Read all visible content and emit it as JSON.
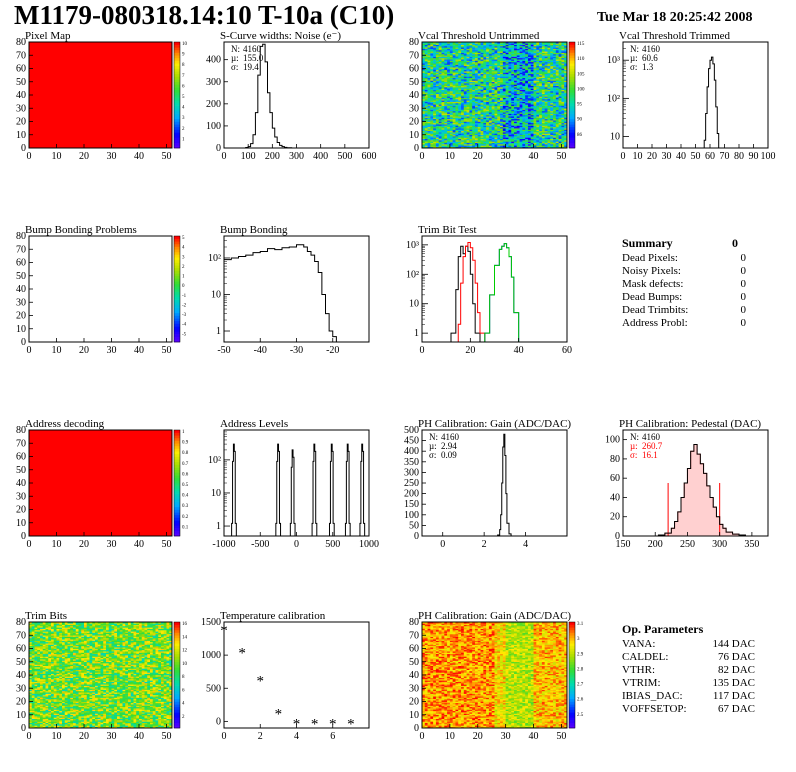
{
  "header": {
    "title": "M1179-080318.14:10 T-10a (C10)",
    "date": "Tue Mar 18 20:25:42 2008"
  },
  "chart_data": [
    {
      "id": "pixel-map",
      "type": "heatmap",
      "title": "Pixel Map",
      "xlim": [
        0,
        52
      ],
      "ylim": [
        0,
        80
      ],
      "xticks": [
        0,
        10,
        20,
        30,
        40,
        50
      ],
      "yticks": [
        0,
        10,
        20,
        30,
        40,
        50,
        60,
        70,
        80
      ],
      "fill": "uniform",
      "zlim": [
        0,
        10
      ],
      "palette_labels": [
        "1",
        "2",
        "3",
        "4",
        "5",
        "6",
        "7",
        "8",
        "9",
        "10"
      ]
    },
    {
      "id": "scurve-noise",
      "type": "line",
      "title": "S-Curve widths: Noise (e⁻)",
      "xlim": [
        0,
        600
      ],
      "ylim": [
        0,
        480
      ],
      "xticks": [
        0,
        100,
        200,
        300,
        400,
        500,
        600
      ],
      "yticks": [
        0,
        100,
        200,
        300,
        400
      ],
      "x": [
        70,
        80,
        90,
        100,
        110,
        120,
        130,
        140,
        150,
        160,
        170,
        180,
        190,
        200,
        210,
        220,
        230,
        240,
        250,
        260,
        270,
        280,
        290
      ],
      "y": [
        0,
        0,
        2,
        6,
        20,
        60,
        160,
        330,
        460,
        470,
        390,
        250,
        160,
        90,
        50,
        25,
        12,
        6,
        3,
        1,
        1,
        0,
        0
      ],
      "stats": [
        {
          "label": "N:",
          "value": "4160"
        },
        {
          "label": "µ:",
          "value": "155.0"
        },
        {
          "label": "σ:",
          "value": "19.4"
        }
      ]
    },
    {
      "id": "vcal-untrimmed",
      "type": "heatmap",
      "title": "Vcal Threshold Untrimmed",
      "xlim": [
        0,
        52
      ],
      "ylim": [
        0,
        80
      ],
      "xticks": [
        0,
        10,
        20,
        30,
        40,
        50
      ],
      "yticks": [
        0,
        10,
        20,
        30,
        40,
        50,
        60,
        70,
        80
      ],
      "fill": "noise-untrimmed",
      "zlim": [
        86,
        117
      ],
      "palette_labels": [
        "86",
        "90",
        "95",
        "100",
        "105",
        "110",
        "115"
      ]
    },
    {
      "id": "vcal-trimmed",
      "type": "line",
      "title": "Vcal Threshold Trimmed",
      "xlim": [
        0,
        100
      ],
      "ylim": [
        5,
        3000
      ],
      "log_y": true,
      "xticks": [
        0,
        10,
        20,
        30,
        40,
        50,
        60,
        70,
        80,
        90,
        100
      ],
      "ytick_labels": [
        "10",
        "10²",
        "10³"
      ],
      "x": [
        55,
        56,
        57,
        58,
        59,
        60,
        61,
        62,
        63,
        64,
        65,
        66,
        67
      ],
      "y": [
        0,
        8,
        40,
        200,
        600,
        1000,
        1200,
        800,
        300,
        60,
        12,
        2,
        0
      ],
      "stats": [
        {
          "label": "N:",
          "value": "4160"
        },
        {
          "label": "µ:",
          "value": "60.6"
        },
        {
          "label": "σ:",
          "value": "1.3"
        }
      ]
    },
    {
      "id": "bump-problems",
      "type": "heatmap",
      "title": "Bump Bonding Problems",
      "xlim": [
        0,
        52
      ],
      "ylim": [
        0,
        80
      ],
      "xticks": [
        0,
        10,
        20,
        30,
        40,
        50
      ],
      "yticks": [
        0,
        10,
        20,
        30,
        40,
        50,
        60,
        70,
        80
      ],
      "fill": "empty",
      "zlim": [
        -5,
        5
      ],
      "palette_labels": [
        "-5",
        "-4",
        "-3",
        "-2",
        "-1",
        "0",
        "1",
        "2",
        "3",
        "4",
        "5"
      ]
    },
    {
      "id": "bump-bonding",
      "type": "line",
      "title": "Bump Bonding",
      "xlim": [
        -50,
        -10
      ],
      "ylim": [
        0.5,
        400
      ],
      "log_y": true,
      "xticks": [
        -50,
        -40,
        -30,
        -20
      ],
      "ytick_labels": [
        "1",
        "10",
        "10²"
      ],
      "x": [
        -50,
        -48,
        -46,
        -44,
        -42,
        -40,
        -38,
        -36,
        -34,
        -32,
        -30,
        -28,
        -27,
        -26,
        -25,
        -24,
        -23,
        -22,
        -21,
        -20,
        -19
      ],
      "y": [
        90,
        100,
        110,
        120,
        140,
        150,
        180,
        170,
        190,
        200,
        230,
        200,
        150,
        120,
        80,
        40,
        10,
        3,
        1,
        0.7,
        0.5
      ]
    },
    {
      "id": "trim-bit-test",
      "type": "line",
      "title": "Trim Bit Test",
      "xlim": [
        0,
        60
      ],
      "ylim": [
        0.5,
        2000
      ],
      "log_y": true,
      "xticks": [
        0,
        20,
        40,
        60
      ],
      "ytick_labels": [
        "1",
        "10",
        "10²",
        "10³"
      ],
      "series": [
        {
          "color": "#000000",
          "x": [
            10,
            12,
            14,
            15,
            16,
            17,
            18,
            19,
            20,
            21,
            22,
            24
          ],
          "y": [
            0.5,
            1,
            30,
            400,
            900,
            500,
            900,
            600,
            100,
            10,
            1,
            0.5
          ]
        },
        {
          "color": "#ff0000",
          "x": [
            13,
            15,
            16,
            17,
            18,
            19,
            20,
            21,
            22,
            23,
            24,
            26
          ],
          "y": [
            0.5,
            2,
            50,
            400,
            900,
            1200,
            800,
            300,
            50,
            5,
            1,
            0.5
          ]
        },
        {
          "color": "#0000ff",
          "x": [
            24,
            26,
            28,
            30,
            32,
            33,
            34,
            35,
            36,
            37,
            38,
            40
          ],
          "y": [
            0.5,
            1,
            20,
            200,
            700,
            900,
            1100,
            800,
            400,
            80,
            5,
            0.5
          ]
        },
        {
          "color": "#00cc00",
          "x": [
            0,
            10,
            20,
            24,
            26,
            28,
            30,
            32,
            33,
            34,
            35,
            36,
            37,
            38,
            40,
            50,
            60
          ],
          "y": [
            0.5,
            0.5,
            0.5,
            0.5,
            1,
            20,
            200,
            700,
            900,
            1100,
            800,
            400,
            80,
            5,
            0.5,
            0.5,
            0.5
          ]
        }
      ]
    },
    {
      "id": "address-decoding",
      "type": "heatmap",
      "title": "Address decoding",
      "xlim": [
        0,
        52
      ],
      "ylim": [
        0,
        80
      ],
      "xticks": [
        0,
        10,
        20,
        30,
        40,
        50
      ],
      "yticks": [
        0,
        10,
        20,
        30,
        40,
        50,
        60,
        70,
        80
      ],
      "fill": "uniform",
      "zlim": [
        0,
        1
      ],
      "palette_labels": [
        "0.1",
        "0.2",
        "0.3",
        "0.4",
        "0.5",
        "0.6",
        "0.7",
        "0.8",
        "0.9",
        "1"
      ]
    },
    {
      "id": "address-levels",
      "type": "line",
      "title": "Address Levels",
      "xlim": [
        -1000,
        1000
      ],
      "ylim": [
        0.5,
        800
      ],
      "log_y": true,
      "xticks": [
        -1000,
        -500,
        0,
        500,
        1000
      ],
      "ytick_labels": [
        "1",
        "10",
        "10²"
      ],
      "peaks": [
        -870,
        -260,
        -60,
        240,
        480,
        700,
        900
      ],
      "peak_heights": [
        300,
        300,
        200,
        300,
        300,
        300,
        300
      ]
    },
    {
      "id": "ph-gain",
      "type": "line",
      "title": "PH Calibration: Gain (ADC/DAC)",
      "xlim": [
        -1,
        6
      ],
      "ylim": [
        0,
        500
      ],
      "xticks": [
        0,
        2,
        4
      ],
      "yticks": [
        0,
        50,
        100,
        150,
        200,
        250,
        300,
        350,
        400,
        450,
        500
      ],
      "x": [
        2.55,
        2.65,
        2.75,
        2.8,
        2.85,
        2.9,
        2.95,
        3.0,
        3.05,
        3.1,
        3.2,
        3.3
      ],
      "y": [
        0,
        5,
        30,
        100,
        250,
        420,
        480,
        380,
        200,
        60,
        10,
        0
      ],
      "stats": [
        {
          "label": "N:",
          "value": "4160"
        },
        {
          "label": "µ:",
          "value": "2.94"
        },
        {
          "label": "σ:",
          "value": "0.09"
        }
      ]
    },
    {
      "id": "ph-pedestal",
      "type": "line",
      "title": "PH Calibration: Pedestal (DAC)",
      "xlim": [
        150,
        375
      ],
      "ylim": [
        0,
        110
      ],
      "xticks": [
        150,
        200,
        250,
        300,
        350
      ],
      "yticks": [
        0,
        20,
        40,
        60,
        80,
        100
      ],
      "x": [
        195,
        205,
        215,
        225,
        230,
        235,
        240,
        245,
        250,
        255,
        260,
        265,
        270,
        275,
        280,
        285,
        290,
        295,
        300,
        305,
        310,
        320,
        330,
        340
      ],
      "y": [
        0,
        1,
        3,
        8,
        15,
        25,
        40,
        55,
        70,
        88,
        95,
        85,
        75,
        65,
        52,
        40,
        30,
        20,
        12,
        8,
        4,
        2,
        1,
        0
      ],
      "fit_range": [
        220,
        300
      ],
      "stats": [
        {
          "label": "N:",
          "value": "4160",
          "color": "#000"
        },
        {
          "label": "µ:",
          "value": "260.7",
          "color": "#ff0000"
        },
        {
          "label": "σ:",
          "value": "16.1",
          "color": "#ff0000"
        }
      ]
    },
    {
      "id": "trim-bits",
      "type": "heatmap",
      "title": "Trim Bits",
      "xlim": [
        0,
        52
      ],
      "ylim": [
        0,
        80
      ],
      "xticks": [
        0,
        10,
        20,
        30,
        40,
        50
      ],
      "yticks": [
        0,
        10,
        20,
        30,
        40,
        50,
        60,
        70,
        80
      ],
      "fill": "noise-trim",
      "zlim": [
        0,
        16
      ],
      "palette_labels": [
        "2",
        "4",
        "6",
        "8",
        "10",
        "12",
        "14",
        "16"
      ]
    },
    {
      "id": "temperature-calibration",
      "type": "scatter",
      "title": "Temperature calibration",
      "xlim": [
        0,
        8
      ],
      "ylim": [
        -100,
        1500
      ],
      "xticks": [
        0,
        2,
        4,
        6
      ],
      "yticks": [
        0,
        500,
        1000,
        1500
      ],
      "x": [
        0,
        1,
        2,
        3,
        4,
        5,
        6,
        7
      ],
      "y": [
        1380,
        1040,
        620,
        120,
        -30,
        -30,
        -30,
        -30
      ]
    },
    {
      "id": "ph-gain-map",
      "type": "heatmap",
      "title": "PH Calibration: Gain (ADC/DAC)",
      "xlim": [
        0,
        52
      ],
      "ylim": [
        0,
        80
      ],
      "xticks": [
        0,
        10,
        20,
        30,
        40,
        50
      ],
      "yticks": [
        0,
        10,
        20,
        30,
        40,
        50,
        60,
        70,
        80
      ],
      "fill": "noise-gain",
      "zlim": [
        2.4,
        3.2
      ],
      "palette_labels": [
        "2.5",
        "2.6",
        "2.7",
        "2.8",
        "2.9",
        "3",
        "3.1"
      ]
    }
  ],
  "summary": {
    "title": "Summary",
    "total": "0",
    "rows": [
      {
        "label": "Dead Pixels:",
        "value": "0"
      },
      {
        "label": "Noisy Pixels:",
        "value": "0"
      },
      {
        "label": "Mask defects:",
        "value": "0"
      },
      {
        "label": "Dead Bumps:",
        "value": "0"
      },
      {
        "label": "Dead Trimbits:",
        "value": "0"
      },
      {
        "label": "Address Probl:",
        "value": "0"
      }
    ]
  },
  "op_parameters": {
    "title": "Op. Parameters",
    "rows": [
      {
        "label": "VANA:",
        "value": "144 DAC"
      },
      {
        "label": "CALDEL:",
        "value": "76 DAC"
      },
      {
        "label": "VTHR:",
        "value": "82 DAC"
      },
      {
        "label": "VTRIM:",
        "value": "135 DAC"
      },
      {
        "label": "IBIAS_DAC:",
        "value": "117 DAC"
      },
      {
        "label": "VOFFSETOP:",
        "value": "67 DAC"
      }
    ]
  }
}
